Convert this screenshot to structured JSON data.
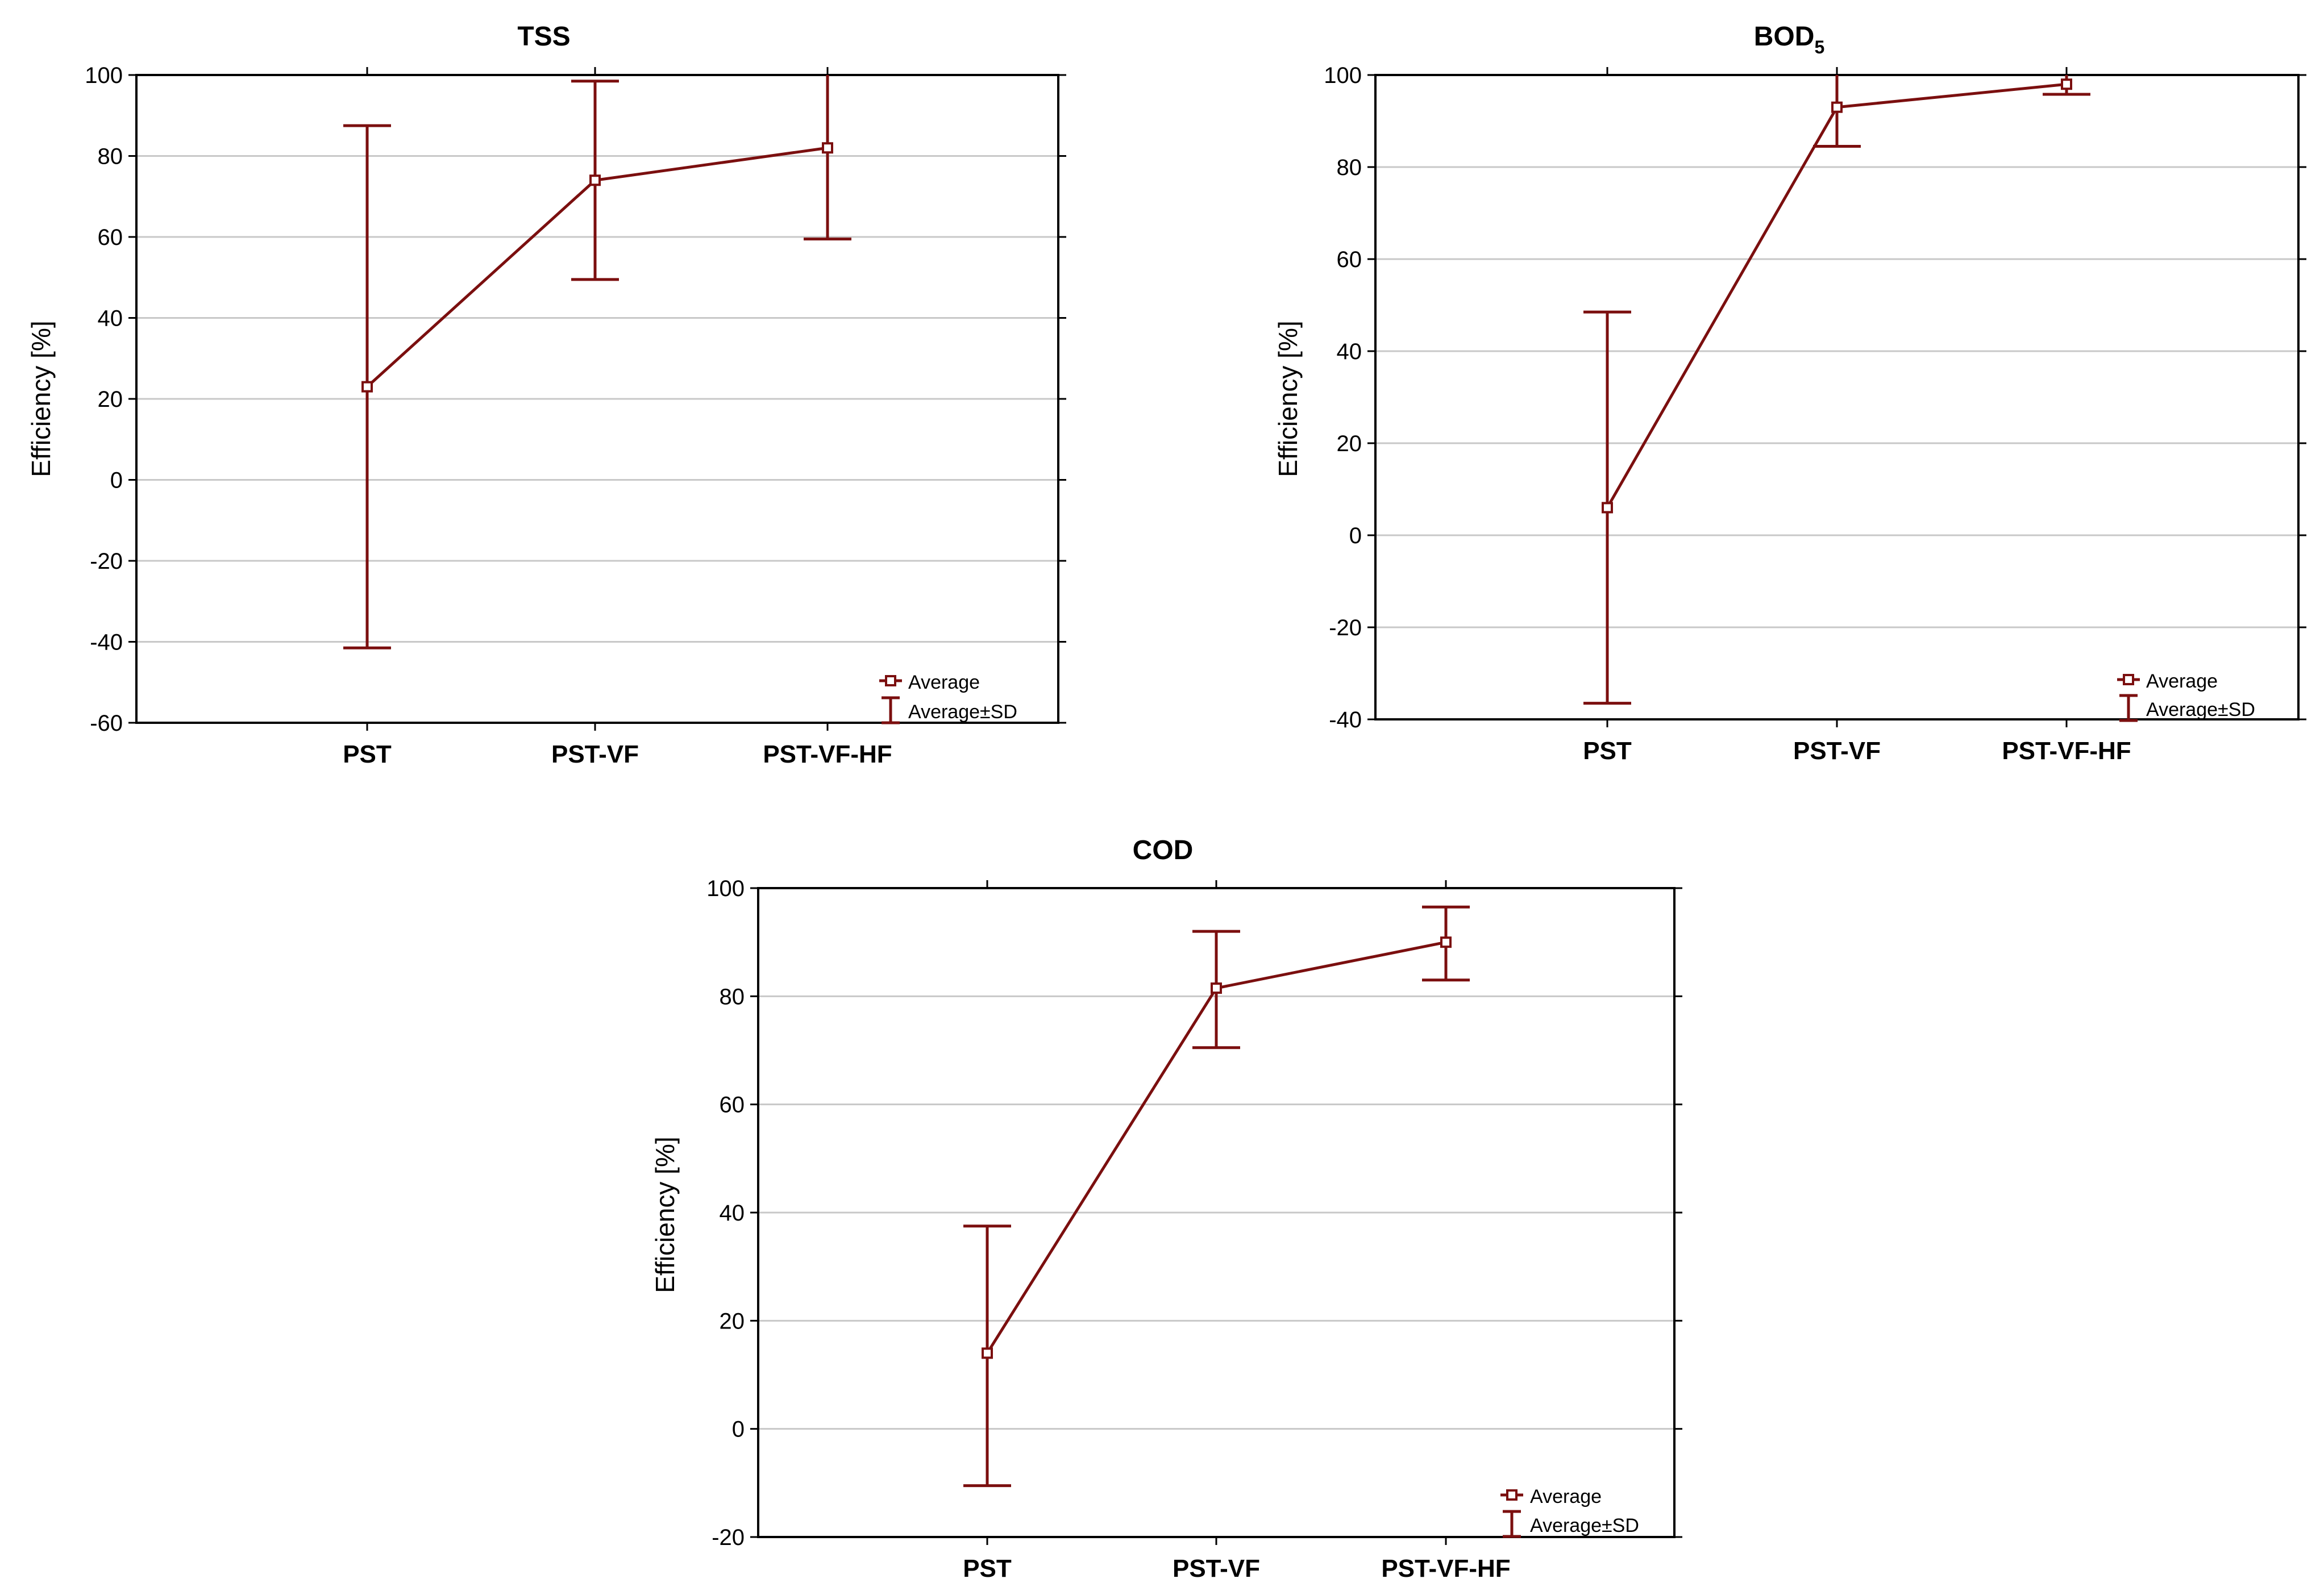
{
  "colors": {
    "series": "#7b0f0f",
    "grid": "#c8c8c8",
    "axis": "#000000"
  },
  "legend": {
    "average": "Average",
    "sd": "Average±SD"
  },
  "chart_data": [
    {
      "type": "line",
      "title": "TSS",
      "title_sub": "",
      "ylabel": "Efficiency [%]",
      "xlabel": "",
      "categories": [
        "PST",
        "PST-VF",
        "PST-VF-HF"
      ],
      "ylim": [
        -60,
        100
      ],
      "yticks": [
        "100",
        "80",
        "60",
        "40",
        "20",
        "0",
        "-20",
        "-40",
        "-60"
      ],
      "grid": true,
      "legend_position": "bottom-right",
      "series": [
        {
          "name": "Average",
          "values": [
            23,
            74,
            82
          ]
        },
        {
          "name": "Average±SD",
          "lower": [
            -41.5,
            49.5,
            59.5
          ],
          "upper": [
            87.5,
            98.5,
            105
          ]
        }
      ]
    },
    {
      "type": "line",
      "title": "BOD",
      "title_sub": "5",
      "ylabel": "Efficiency [%]",
      "xlabel": "",
      "categories": [
        "PST",
        "PST-VF",
        "PST-VF-HF"
      ],
      "ylim": [
        -40,
        100
      ],
      "yticks": [
        "100",
        "80",
        "60",
        "40",
        "20",
        "0",
        "-20",
        "-40"
      ],
      "grid": true,
      "legend_position": "bottom-right",
      "series": [
        {
          "name": "Average",
          "values": [
            6,
            93,
            98
          ]
        },
        {
          "name": "Average±SD",
          "lower": [
            -36.5,
            84.5,
            95.8
          ],
          "upper": [
            48.5,
            101.5,
            100.5
          ]
        }
      ]
    },
    {
      "type": "line",
      "title": "COD",
      "title_sub": "",
      "ylabel": "Efficiency [%]",
      "xlabel": "",
      "categories": [
        "PST",
        "PST-VF",
        "PST-VF-HF"
      ],
      "ylim": [
        -20,
        100
      ],
      "yticks": [
        "100",
        "80",
        "60",
        "40",
        "20",
        "0",
        "-20"
      ],
      "grid": true,
      "legend_position": "bottom-right",
      "series": [
        {
          "name": "Average",
          "values": [
            14,
            81.5,
            90
          ]
        },
        {
          "name": "Average±SD",
          "lower": [
            -10.5,
            70.5,
            83
          ],
          "upper": [
            37.5,
            92,
            96.5
          ]
        }
      ]
    }
  ]
}
